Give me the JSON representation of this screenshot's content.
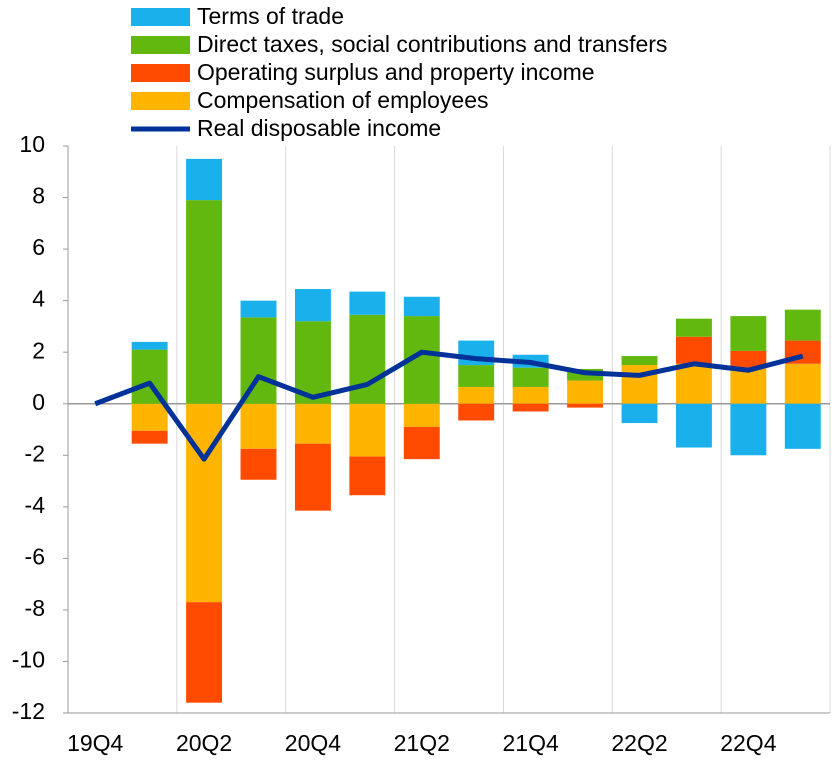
{
  "chart_data": {
    "type": "bar",
    "categories": [
      "19Q4",
      null,
      "20Q2",
      null,
      "20Q4",
      null,
      "21Q2",
      null,
      "21Q4",
      null,
      "22Q2",
      null,
      "22Q4",
      null
    ],
    "series": [
      {
        "name": "Terms of trade",
        "color": "#1ab0ec",
        "values": [
          0,
          0.3,
          1.6,
          0.65,
          1.25,
          0.9,
          0.75,
          0.95,
          0.5,
          0,
          -0.75,
          -1.7,
          -2.0,
          -1.75
        ]
      },
      {
        "name": "Direct taxes, social contributions and transfers",
        "color": "#62b80f",
        "values": [
          0,
          2.1,
          7.9,
          3.35,
          3.2,
          3.45,
          3.4,
          0.85,
          0.75,
          0.45,
          0.35,
          0.7,
          1.35,
          1.2
        ]
      },
      {
        "name": "Operating surplus and property income",
        "color": "#ff4b00",
        "values": [
          0,
          -0.5,
          -3.9,
          -1.2,
          -2.6,
          -1.5,
          -1.25,
          -0.65,
          -0.3,
          -0.15,
          0,
          1.05,
          0.65,
          0.9
        ]
      },
      {
        "name": "Compensation of employees",
        "color": "#ffb400",
        "values": [
          0,
          -1.05,
          -7.7,
          -1.75,
          -1.55,
          -2.05,
          -0.9,
          0.65,
          0.65,
          0.9,
          1.5,
          1.55,
          1.4,
          1.55
        ]
      },
      {
        "name": "Real disposable income",
        "color": "#003299",
        "type": "line",
        "values": [
          0,
          0.8,
          -2.15,
          1.05,
          0.25,
          0.75,
          2.0,
          1.75,
          1.6,
          1.2,
          1.1,
          1.55,
          1.3,
          1.85
        ]
      }
    ],
    "ylim": [
      -12,
      10
    ],
    "yticks": [
      -12,
      -10,
      -8,
      -6,
      -4,
      -2,
      0,
      2,
      4,
      6,
      8,
      10
    ],
    "grid": true,
    "legend": "top"
  }
}
